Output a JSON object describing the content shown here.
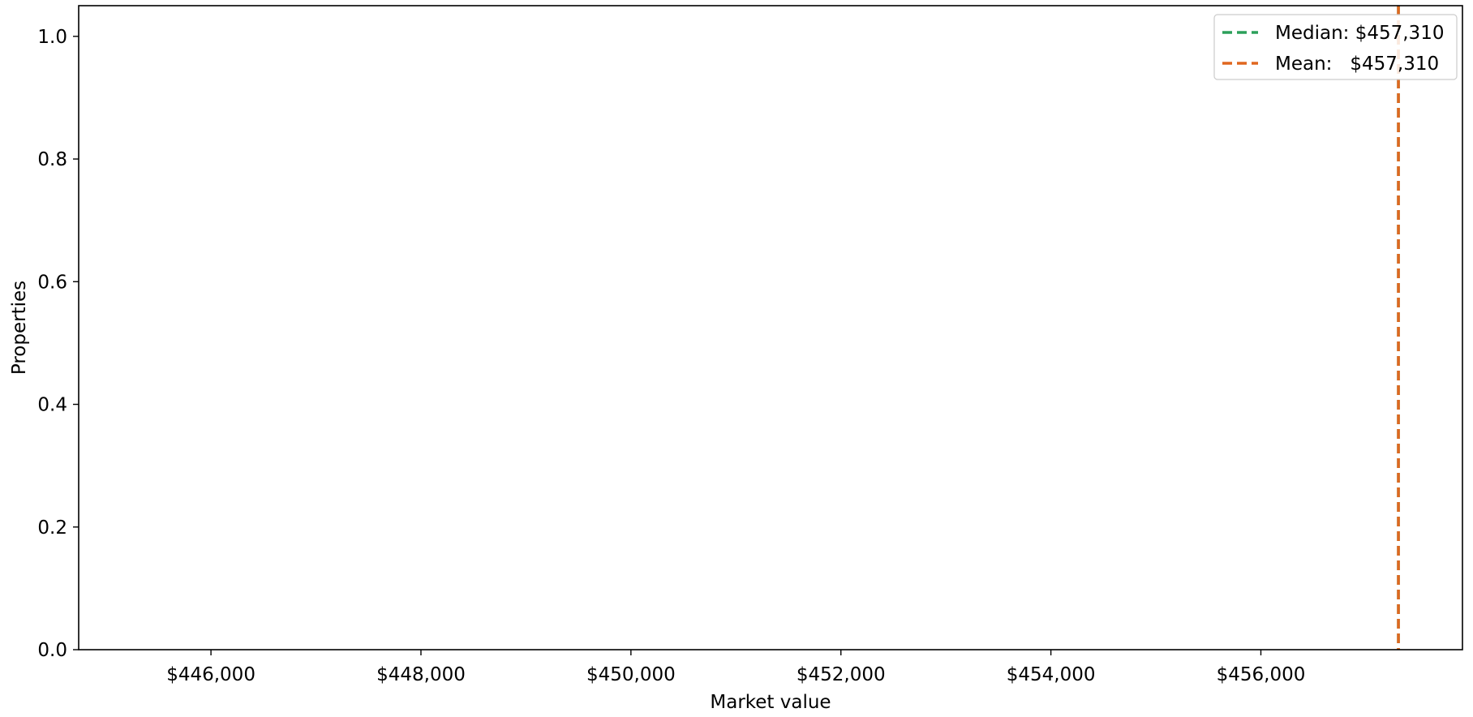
{
  "chart_data": {
    "type": "histogram",
    "title": "",
    "xlabel": "Market value",
    "ylabel": "Properties",
    "xlim": [
      444740,
      457920
    ],
    "ylim": [
      0,
      1.05
    ],
    "x_ticks": [
      446000,
      448000,
      450000,
      452000,
      454000,
      456000
    ],
    "x_tick_labels": [
      "$446,000",
      "$448,000",
      "$450,000",
      "$452,000",
      "$454,000",
      "$456,000"
    ],
    "y_ticks": [
      0.0,
      0.2,
      0.4,
      0.6,
      0.8,
      1.0
    ],
    "y_tick_labels": [
      "0.0",
      "0.2",
      "0.4",
      "0.6",
      "0.8",
      "1.0"
    ],
    "bars": [],
    "reference_lines": [
      {
        "name": "median-line",
        "value": 457310,
        "color": "#2ca05a",
        "style": "dashed",
        "legend_label": "Median: $457,310"
      },
      {
        "name": "mean-line",
        "value": 457310,
        "color": "#e0671f",
        "style": "dashed",
        "legend_label": "Mean:   $457,310"
      }
    ],
    "legend_position": "top-right",
    "grid": false
  }
}
